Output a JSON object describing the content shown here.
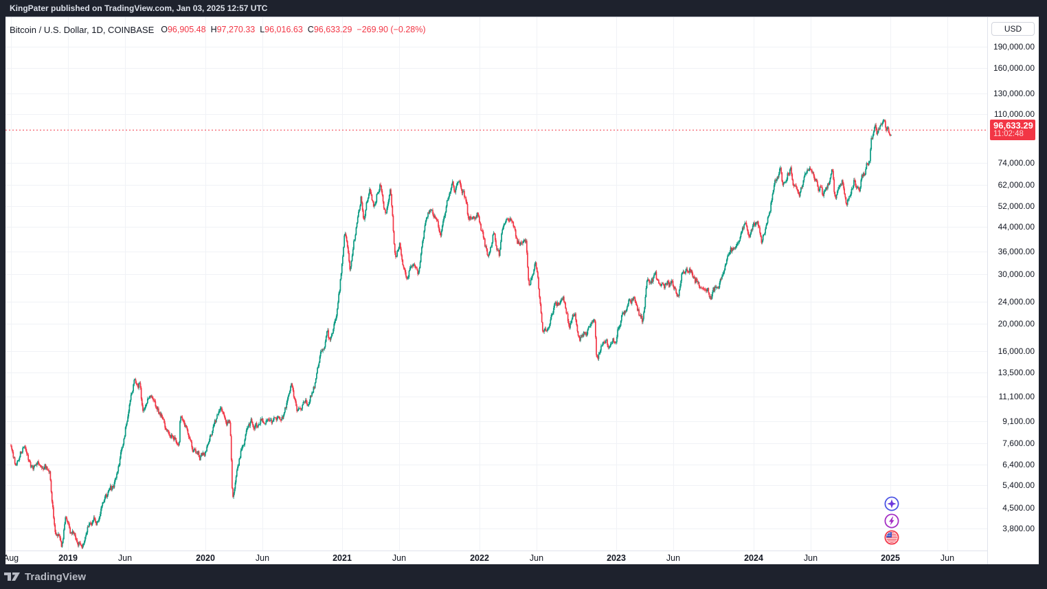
{
  "attribution": "KingPater published on TradingView.com, Jan 03, 2025 12:57 UTC",
  "header": {
    "title": "Bitcoin / U.S. Dollar, 1D, COINBASE",
    "open_label": "O",
    "open": "96,905.48",
    "high_label": "H",
    "high": "97,270.33",
    "low_label": "L",
    "low": "96,016.63",
    "close_label": "C",
    "close": "96,633.29",
    "change": "−269.90 (−0.28%)"
  },
  "price_scale": {
    "currency_button": "USD",
    "last_price": "96,633.29",
    "countdown": "11:02:48",
    "ticks": [
      {
        "label": "190,000.00",
        "value": 190000
      },
      {
        "label": "160,000.00",
        "value": 160000
      },
      {
        "label": "130,000.00",
        "value": 130000
      },
      {
        "label": "110,000.00",
        "value": 110000
      },
      {
        "label": "74,000.00",
        "value": 74000
      },
      {
        "label": "62,000.00",
        "value": 62000
      },
      {
        "label": "52,000.00",
        "value": 52000
      },
      {
        "label": "44,000.00",
        "value": 44000
      },
      {
        "label": "36,000.00",
        "value": 36000
      },
      {
        "label": "30,000.00",
        "value": 30000
      },
      {
        "label": "24,000.00",
        "value": 24000
      },
      {
        "label": "20,000.00",
        "value": 20000
      },
      {
        "label": "16,000.00",
        "value": 16000
      },
      {
        "label": "13,500.00",
        "value": 13500
      },
      {
        "label": "11,100.00",
        "value": 11100
      },
      {
        "label": "9,100.00",
        "value": 9100
      },
      {
        "label": "7,600.00",
        "value": 7600
      },
      {
        "label": "6,400.00",
        "value": 6400
      },
      {
        "label": "5,400.00",
        "value": 5400
      },
      {
        "label": "4,500.00",
        "value": 4500
      },
      {
        "label": "3,800.00",
        "value": 3800
      }
    ]
  },
  "time_scale": {
    "ticks": [
      {
        "label": "Aug",
        "date": "2018-08-01",
        "major": false
      },
      {
        "label": "2019",
        "date": "2019-01-01",
        "major": true
      },
      {
        "label": "Jun",
        "date": "2019-06-01",
        "major": false
      },
      {
        "label": "2020",
        "date": "2020-01-01",
        "major": true
      },
      {
        "label": "Jun",
        "date": "2020-06-01",
        "major": false
      },
      {
        "label": "2021",
        "date": "2021-01-01",
        "major": true
      },
      {
        "label": "Jun",
        "date": "2021-06-01",
        "major": false
      },
      {
        "label": "2022",
        "date": "2022-01-01",
        "major": true
      },
      {
        "label": "Jun",
        "date": "2022-06-01",
        "major": false
      },
      {
        "label": "2023",
        "date": "2023-01-01",
        "major": true
      },
      {
        "label": "Jun",
        "date": "2023-06-01",
        "major": false
      },
      {
        "label": "2024",
        "date": "2024-01-01",
        "major": true
      },
      {
        "label": "Jun",
        "date": "2024-06-01",
        "major": false
      },
      {
        "label": "2025",
        "date": "2025-01-01",
        "major": true
      },
      {
        "label": "Jun",
        "date": "2025-06-01",
        "major": false
      }
    ]
  },
  "event_markers": [
    {
      "name": "sparkle-event",
      "ring_color": "#4b53e4",
      "glyph_color": "#6c38dd"
    },
    {
      "name": "lightning-event",
      "ring_color": "#a32cc4",
      "glyph_color": "#a32cc4"
    },
    {
      "name": "us-economy-event",
      "ring_color": "#f23d4e",
      "glyph_color": "#4053c0"
    }
  ],
  "branding": {
    "logo_text": "TradingView"
  },
  "chart_data": {
    "type": "candlestick",
    "title": "Bitcoin / U.S. Dollar",
    "interval": "1D",
    "exchange": "COINBASE",
    "currency": "USD",
    "scale": "logarithmic",
    "grid": true,
    "ohlc_last": {
      "open": 96905.48,
      "high": 97270.33,
      "low": 96016.63,
      "close": 96633.29,
      "change": -269.9,
      "change_pct": -0.28
    },
    "last_price_line": 96633.29,
    "y_range_ticks": [
      190000,
      160000,
      130000,
      110000,
      74000,
      62000,
      52000,
      44000,
      36000,
      30000,
      24000,
      20000,
      16000,
      13500,
      11100,
      9100,
      7600,
      6400,
      5400,
      4500,
      3800
    ],
    "x_range": [
      "2018-08-01",
      "2025-06-30"
    ],
    "colors": {
      "up": "#089981",
      "down": "#f23645",
      "price_line": "#f23645",
      "grid": "#f0f2f6"
    },
    "series_note": "sampled close prices read from chart",
    "series": [
      [
        "2018-08-01",
        7600
      ],
      [
        "2018-08-14",
        6250
      ],
      [
        "2018-09-04",
        7350
      ],
      [
        "2018-09-25",
        6450
      ],
      [
        "2018-10-15",
        6480
      ],
      [
        "2018-11-13",
        6350
      ],
      [
        "2018-11-20",
        4550
      ],
      [
        "2018-11-26",
        3830
      ],
      [
        "2018-12-15",
        3230
      ],
      [
        "2018-12-24",
        4050
      ],
      [
        "2019-01-10",
        3650
      ],
      [
        "2019-02-07",
        3400
      ],
      [
        "2019-02-24",
        3950
      ],
      [
        "2019-03-15",
        3920
      ],
      [
        "2019-04-02",
        4880
      ],
      [
        "2019-05-01",
        5350
      ],
      [
        "2019-05-30",
        8300
      ],
      [
        "2019-06-26",
        13350
      ],
      [
        "2019-07-10",
        12600
      ],
      [
        "2019-07-17",
        9700
      ],
      [
        "2019-08-06",
        11450
      ],
      [
        "2019-09-01",
        9750
      ],
      [
        "2019-09-25",
        8450
      ],
      [
        "2019-10-23",
        7500
      ],
      [
        "2019-10-26",
        9250
      ],
      [
        "2019-11-20",
        8100
      ],
      [
        "2019-12-17",
        6650
      ],
      [
        "2020-01-03",
        7350
      ],
      [
        "2020-01-31",
        9350
      ],
      [
        "2020-02-13",
        10250
      ],
      [
        "2020-03-07",
        8900
      ],
      [
        "2020-03-13",
        4900
      ],
      [
        "2020-03-16",
        5050
      ],
      [
        "2020-04-06",
        7300
      ],
      [
        "2020-04-29",
        8800
      ],
      [
        "2020-05-10",
        8700
      ],
      [
        "2020-06-01",
        9500
      ],
      [
        "2020-07-20",
        9200
      ],
      [
        "2020-08-17",
        12250
      ],
      [
        "2020-09-05",
        10150
      ],
      [
        "2020-09-30",
        10800
      ],
      [
        "2020-10-21",
        12800
      ],
      [
        "2020-11-05",
        15600
      ],
      [
        "2020-11-24",
        19100
      ],
      [
        "2020-11-26",
        17150
      ],
      [
        "2020-12-16",
        21300
      ],
      [
        "2021-01-08",
        40800
      ],
      [
        "2021-01-22",
        30900
      ],
      [
        "2021-02-21",
        57400
      ],
      [
        "2021-02-28",
        45100
      ],
      [
        "2021-03-13",
        61200
      ],
      [
        "2021-03-25",
        51300
      ],
      [
        "2021-04-13",
        63600
      ],
      [
        "2021-04-25",
        49100
      ],
      [
        "2021-05-08",
        58800
      ],
      [
        "2021-05-19",
        36700
      ],
      [
        "2021-05-23",
        34700
      ],
      [
        "2021-06-02",
        37600
      ],
      [
        "2021-06-22",
        28900
      ],
      [
        "2021-07-09",
        33800
      ],
      [
        "2021-07-20",
        29500
      ],
      [
        "2021-08-08",
        43800
      ],
      [
        "2021-08-23",
        49500
      ],
      [
        "2021-09-07",
        46900
      ],
      [
        "2021-09-21",
        40200
      ],
      [
        "2021-10-05",
        51500
      ],
      [
        "2021-10-20",
        66000
      ],
      [
        "2021-10-27",
        58500
      ],
      [
        "2021-11-08",
        67550
      ],
      [
        "2021-11-28",
        54700
      ],
      [
        "2021-12-04",
        47300
      ],
      [
        "2021-12-27",
        50700
      ],
      [
        "2022-01-10",
        41800
      ],
      [
        "2022-01-24",
        35500
      ],
      [
        "2022-02-10",
        43500
      ],
      [
        "2022-02-24",
        35100
      ],
      [
        "2022-03-02",
        44400
      ],
      [
        "2022-03-29",
        47450
      ],
      [
        "2022-04-11",
        39500
      ],
      [
        "2022-05-04",
        39700
      ],
      [
        "2022-05-12",
        27200
      ],
      [
        "2022-05-31",
        31800
      ],
      [
        "2022-06-13",
        22500
      ],
      [
        "2022-06-18",
        18970
      ],
      [
        "2022-07-03",
        19300
      ],
      [
        "2022-07-20",
        23250
      ],
      [
        "2022-08-14",
        24300
      ],
      [
        "2022-08-28",
        19550
      ],
      [
        "2022-09-12",
        22400
      ],
      [
        "2022-09-21",
        18550
      ],
      [
        "2022-10-15",
        19100
      ],
      [
        "2022-11-05",
        21300
      ],
      [
        "2022-11-09",
        15880
      ],
      [
        "2022-12-01",
        17100
      ],
      [
        "2022-12-30",
        16550
      ],
      [
        "2023-01-14",
        20950
      ],
      [
        "2023-02-02",
        23700
      ],
      [
        "2023-02-15",
        24600
      ],
      [
        "2023-03-10",
        20150
      ],
      [
        "2023-03-22",
        28100
      ],
      [
        "2023-04-13",
        30400
      ],
      [
        "2023-04-24",
        27600
      ],
      [
        "2023-05-29",
        27750
      ],
      [
        "2023-06-15",
        25100
      ],
      [
        "2023-06-23",
        30700
      ],
      [
        "2023-07-13",
        31450
      ],
      [
        "2023-08-17",
        26650
      ],
      [
        "2023-09-11",
        25150
      ],
      [
        "2023-10-01",
        27950
      ],
      [
        "2023-10-24",
        33950
      ],
      [
        "2023-11-09",
        36700
      ],
      [
        "2023-12-08",
        44200
      ],
      [
        "2023-12-18",
        41300
      ],
      [
        "2024-01-11",
        46350
      ],
      [
        "2024-01-23",
        39900
      ],
      [
        "2024-02-14",
        51800
      ],
      [
        "2024-02-28",
        62450
      ],
      [
        "2024-03-13",
        73100
      ],
      [
        "2024-03-19",
        61900
      ],
      [
        "2024-04-08",
        71650
      ],
      [
        "2024-04-17",
        61300
      ],
      [
        "2024-05-01",
        57000
      ],
      [
        "2024-05-21",
        71400
      ],
      [
        "2024-06-06",
        71000
      ],
      [
        "2024-06-24",
        60300
      ],
      [
        "2024-07-05",
        56650
      ],
      [
        "2024-07-29",
        68250
      ],
      [
        "2024-08-05",
        53900
      ],
      [
        "2024-08-24",
        64200
      ],
      [
        "2024-09-06",
        53900
      ],
      [
        "2024-09-27",
        65700
      ],
      [
        "2024-10-10",
        60300
      ],
      [
        "2024-10-29",
        72700
      ],
      [
        "2024-11-06",
        75050
      ],
      [
        "2024-11-11",
        88700
      ],
      [
        "2024-11-22",
        98950
      ],
      [
        "2024-11-26",
        91900
      ],
      [
        "2024-12-05",
        101100
      ],
      [
        "2024-12-17",
        106050
      ],
      [
        "2024-12-20",
        97450
      ],
      [
        "2024-12-25",
        99300
      ],
      [
        "2024-12-30",
        93500
      ],
      [
        "2025-01-03",
        96633
      ]
    ]
  }
}
